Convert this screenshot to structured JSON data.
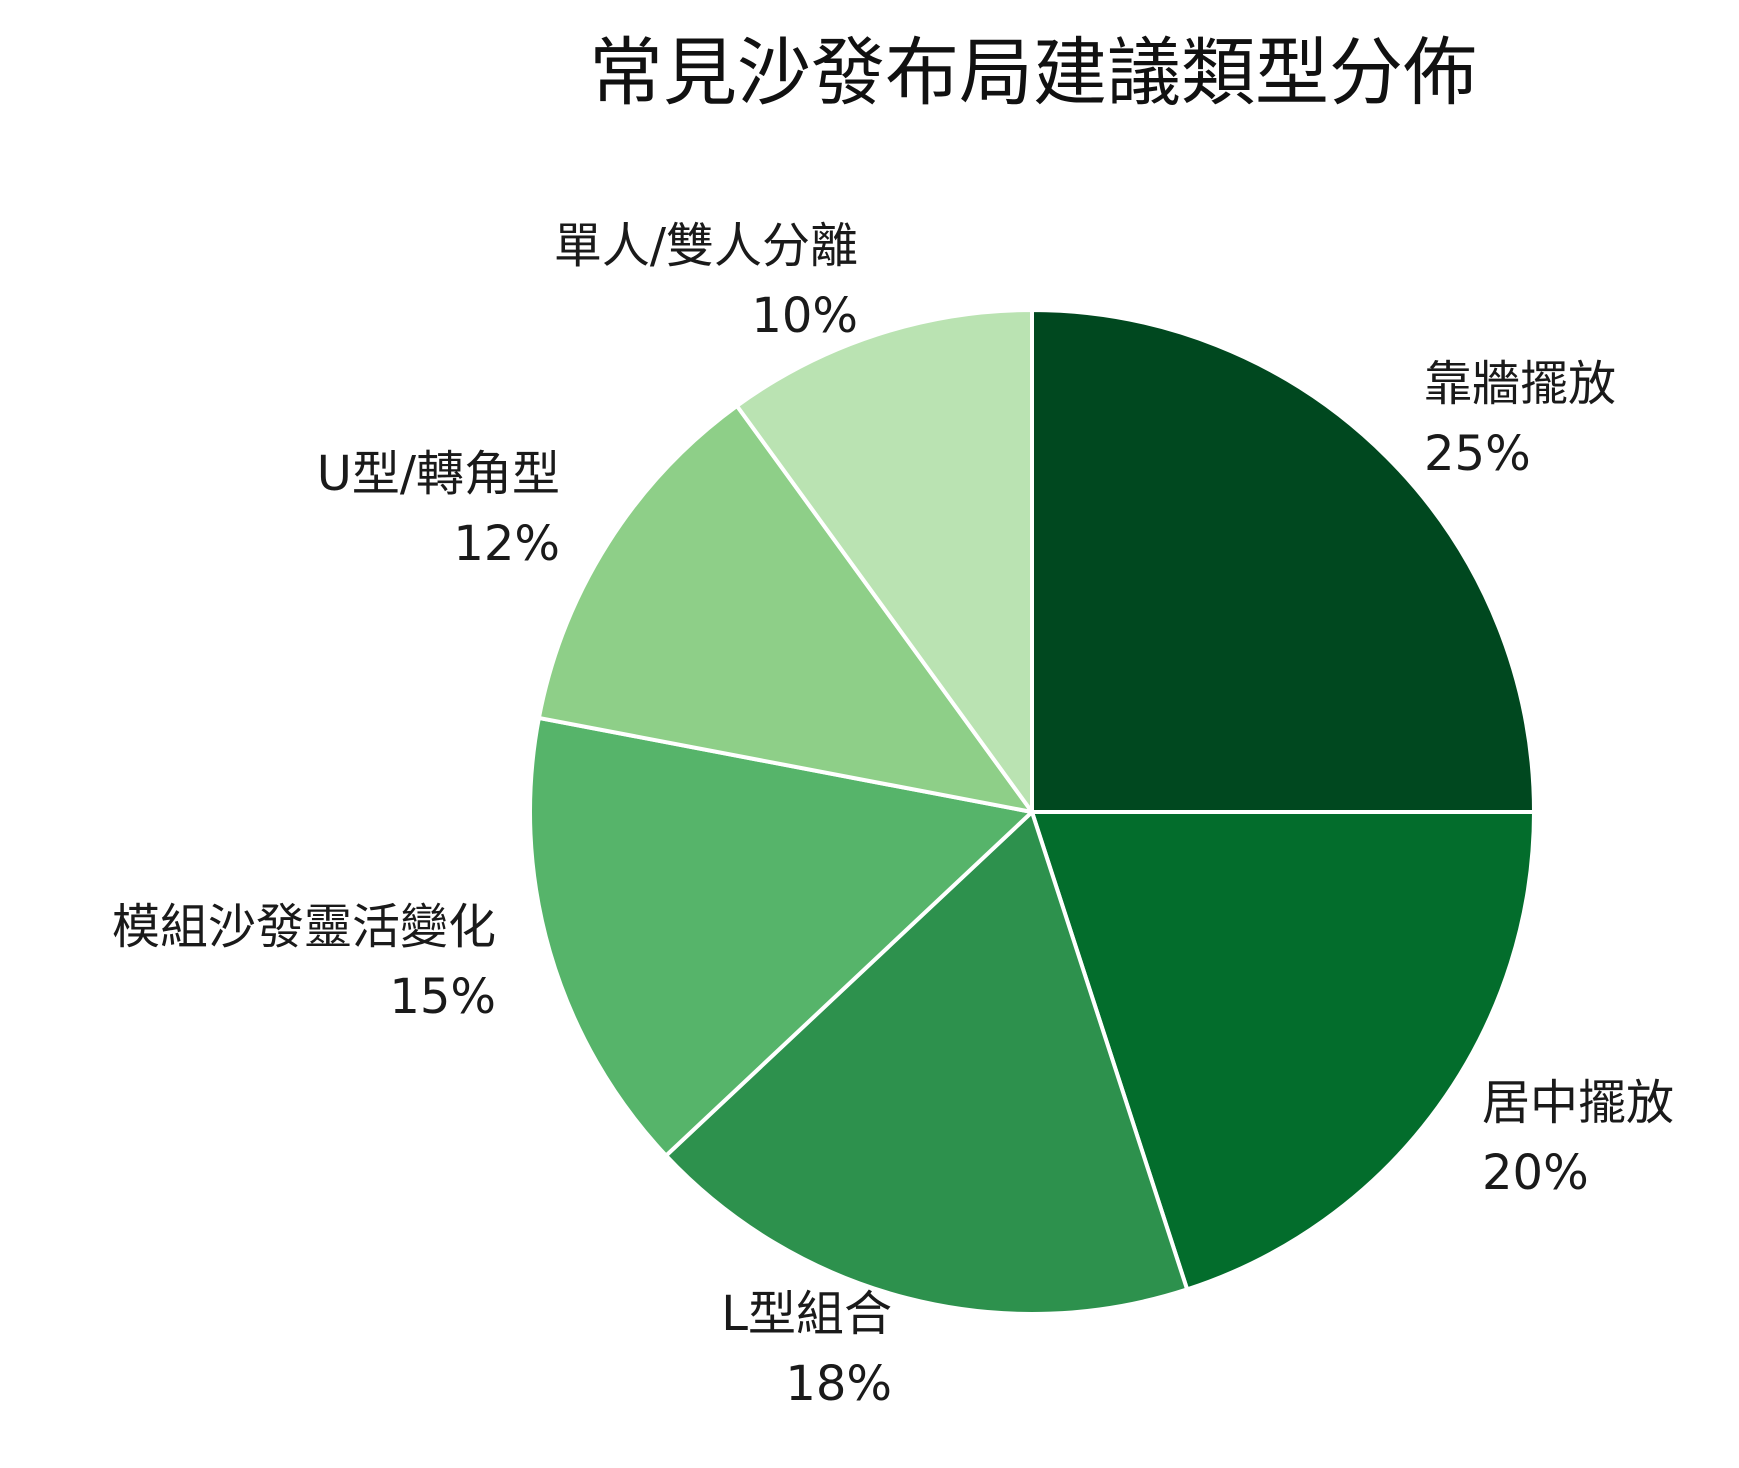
{
  "chart_data": {
    "type": "pie",
    "title": "常見沙發布局建議類型分佈",
    "start": "12 o'clock",
    "direction": "clockwise",
    "slices": [
      {
        "label": "靠牆擺放",
        "value": 25,
        "display": "25%",
        "color": "#00481f"
      },
      {
        "label": "居中擺放",
        "value": 20,
        "display": "20%",
        "color": "#036d2c"
      },
      {
        "label": "L型組合",
        "value": 18,
        "display": "18%",
        "color": "#2d914d"
      },
      {
        "label": "模組沙發靈活變化",
        "value": 15,
        "display": "15%",
        "color": "#56b46a"
      },
      {
        "label": "U型/轉角型",
        "value": 12,
        "display": "12%",
        "color": "#8ecf88"
      },
      {
        "label": "單人/雙人分離",
        "value": 10,
        "display": "10%",
        "color": "#bae3b2"
      }
    ]
  }
}
